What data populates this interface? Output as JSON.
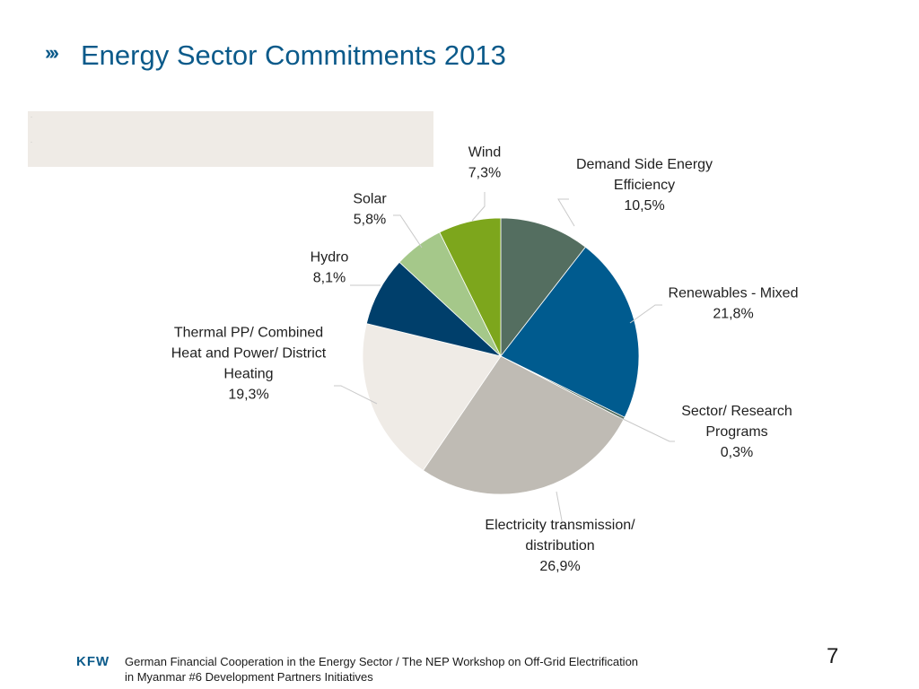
{
  "header": {
    "chevrons": "›››",
    "title": "Energy Sector Commitments 2013"
  },
  "footer": {
    "logo": "KFW",
    "line1": "German Financial Cooperation in the Energy Sector / The NEP Workshop on Off-Grid Electrification",
    "line2": "in Myanmar #6 Development Partners Initiatives",
    "page_number": "7"
  },
  "chart_data": {
    "type": "pie",
    "title": "",
    "start": "12 o'clock",
    "direction": "clockwise",
    "slices": [
      {
        "name": "Demand Side Energy Efficiency",
        "label_lines": [
          "Demand Side Energy",
          "Efficiency"
        ],
        "value": 10.5,
        "value_label": "10,5%",
        "color": "#546e60"
      },
      {
        "name": "Renewables - Mixed",
        "label_lines": [
          "Renewables - Mixed"
        ],
        "value": 21.8,
        "value_label": "21,8%",
        "color": "#005b8f"
      },
      {
        "name": "Sector/ Research Programs",
        "label_lines": [
          "Sector/ Research",
          "Programs"
        ],
        "value": 0.3,
        "value_label": "0,3%",
        "color": "#546e60"
      },
      {
        "name": "Electricity transmission/ distribution",
        "label_lines": [
          "Electricity transmission/",
          "distribution"
        ],
        "value": 26.9,
        "value_label": "26,9%",
        "color": "#bfbbb4"
      },
      {
        "name": "Thermal PP/ Combined Heat and Power/ District Heating",
        "label_lines": [
          "Thermal PP/ Combined",
          "Heat and Power/ District",
          "Heating"
        ],
        "value": 19.3,
        "value_label": "19,3%",
        "color": "#efebe6"
      },
      {
        "name": "Hydro",
        "label_lines": [
          "Hydro"
        ],
        "value": 8.1,
        "value_label": "8,1%",
        "color": "#003f6b"
      },
      {
        "name": "Solar",
        "label_lines": [
          "Solar"
        ],
        "value": 5.8,
        "value_label": "5,8%",
        "color": "#a5c88a"
      },
      {
        "name": "Wind",
        "label_lines": [
          "Wind"
        ],
        "value": 7.3,
        "value_label": "7,3%",
        "color": "#7da61c"
      }
    ]
  }
}
